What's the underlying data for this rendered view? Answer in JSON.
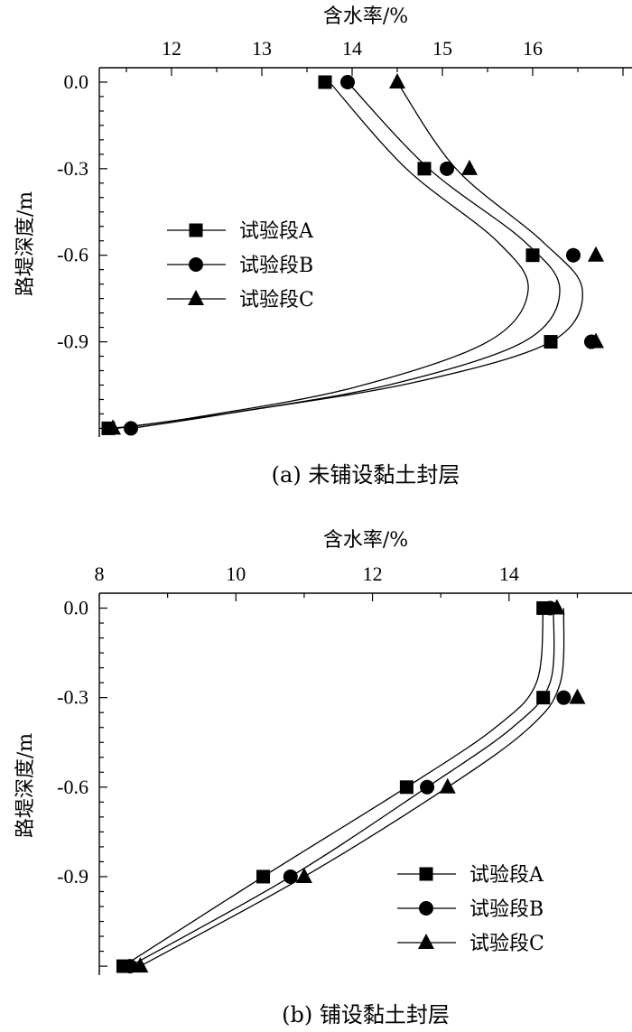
{
  "chart_data": [
    {
      "type": "line",
      "caption": "(a) 未铺设黏土封层",
      "xlabel": "含水率/%",
      "ylabel": "路堤深度/m",
      "xlim": [
        11.2,
        17.1
      ],
      "ylim": [
        -1.23,
        0.05
      ],
      "x_ticks": [
        "12",
        "13",
        "14",
        "15",
        "16"
      ],
      "y_ticks": [
        "0.0",
        "-0.3",
        "-0.6",
        "-0.9"
      ],
      "y": [
        0.0,
        -0.3,
        -0.6,
        -0.9,
        -1.2
      ],
      "legend_position": "middle-left",
      "series": [
        {
          "name": "试验段A",
          "marker": "square",
          "values": [
            13.7,
            14.8,
            16.0,
            16.2,
            11.3
          ],
          "curve": [
            [
              13.75,
              0.0
            ],
            [
              14.6,
              -0.3
            ],
            [
              15.6,
              -0.55
            ],
            [
              15.95,
              -0.72
            ],
            [
              15.5,
              -0.9
            ],
            [
              14.0,
              -1.06
            ],
            [
              12.3,
              -1.16
            ],
            [
              11.35,
              -1.2
            ]
          ]
        },
        {
          "name": "试验段B",
          "marker": "circle",
          "values": [
            13.95,
            15.05,
            16.45,
            16.65,
            11.55
          ],
          "curve": [
            [
              13.95,
              0.0
            ],
            [
              14.85,
              -0.3
            ],
            [
              15.9,
              -0.55
            ],
            [
              16.3,
              -0.72
            ],
            [
              15.9,
              -0.9
            ],
            [
              14.4,
              -1.05
            ],
            [
              12.6,
              -1.15
            ],
            [
              11.55,
              -1.2
            ]
          ]
        },
        {
          "name": "试验段C",
          "marker": "triangle",
          "values": [
            14.5,
            15.3,
            16.7,
            16.7,
            11.35
          ],
          "curve": [
            [
              14.5,
              0.0
            ],
            [
              15.15,
              -0.3
            ],
            [
              16.1,
              -0.55
            ],
            [
              16.55,
              -0.72
            ],
            [
              16.2,
              -0.9
            ],
            [
              14.7,
              -1.04
            ],
            [
              12.8,
              -1.14
            ],
            [
              11.4,
              -1.2
            ]
          ]
        }
      ]
    },
    {
      "type": "line",
      "caption": "(b) 铺设黏土封层",
      "xlabel": "含水率/%",
      "ylabel": "路堤深度/m",
      "xlim": [
        8.0,
        15.8
      ],
      "ylim": [
        -1.23,
        0.05
      ],
      "x_ticks": [
        "8",
        "10",
        "12",
        "14"
      ],
      "y_ticks": [
        "0.0",
        "-0.3",
        "-0.6",
        "-0.9"
      ],
      "y": [
        0.0,
        -0.3,
        -0.6,
        -0.9,
        -1.2
      ],
      "legend_position": "bottom-right",
      "series": [
        {
          "name": "试验段A",
          "marker": "square",
          "values": [
            14.5,
            14.5,
            12.5,
            10.4,
            8.35
          ],
          "curve": [
            [
              14.5,
              0.0
            ],
            [
              14.4,
              -0.25
            ],
            [
              13.8,
              -0.4
            ],
            [
              12.5,
              -0.6
            ],
            [
              10.4,
              -0.9
            ],
            [
              8.35,
              -1.2
            ]
          ]
        },
        {
          "name": "试验段B",
          "marker": "circle",
          "values": [
            14.6,
            14.8,
            12.8,
            10.8,
            8.45
          ],
          "curve": [
            [
              14.65,
              0.0
            ],
            [
              14.6,
              -0.25
            ],
            [
              14.05,
              -0.4
            ],
            [
              12.8,
              -0.6
            ],
            [
              10.8,
              -0.9
            ],
            [
              8.45,
              -1.2
            ]
          ]
        },
        {
          "name": "试验段C",
          "marker": "triangle",
          "values": [
            14.7,
            15.0,
            13.1,
            11.0,
            8.6
          ],
          "curve": [
            [
              14.8,
              0.0
            ],
            [
              14.75,
              -0.25
            ],
            [
              14.3,
              -0.4
            ],
            [
              13.1,
              -0.6
            ],
            [
              11.0,
              -0.9
            ],
            [
              8.6,
              -1.2
            ]
          ]
        }
      ]
    }
  ]
}
